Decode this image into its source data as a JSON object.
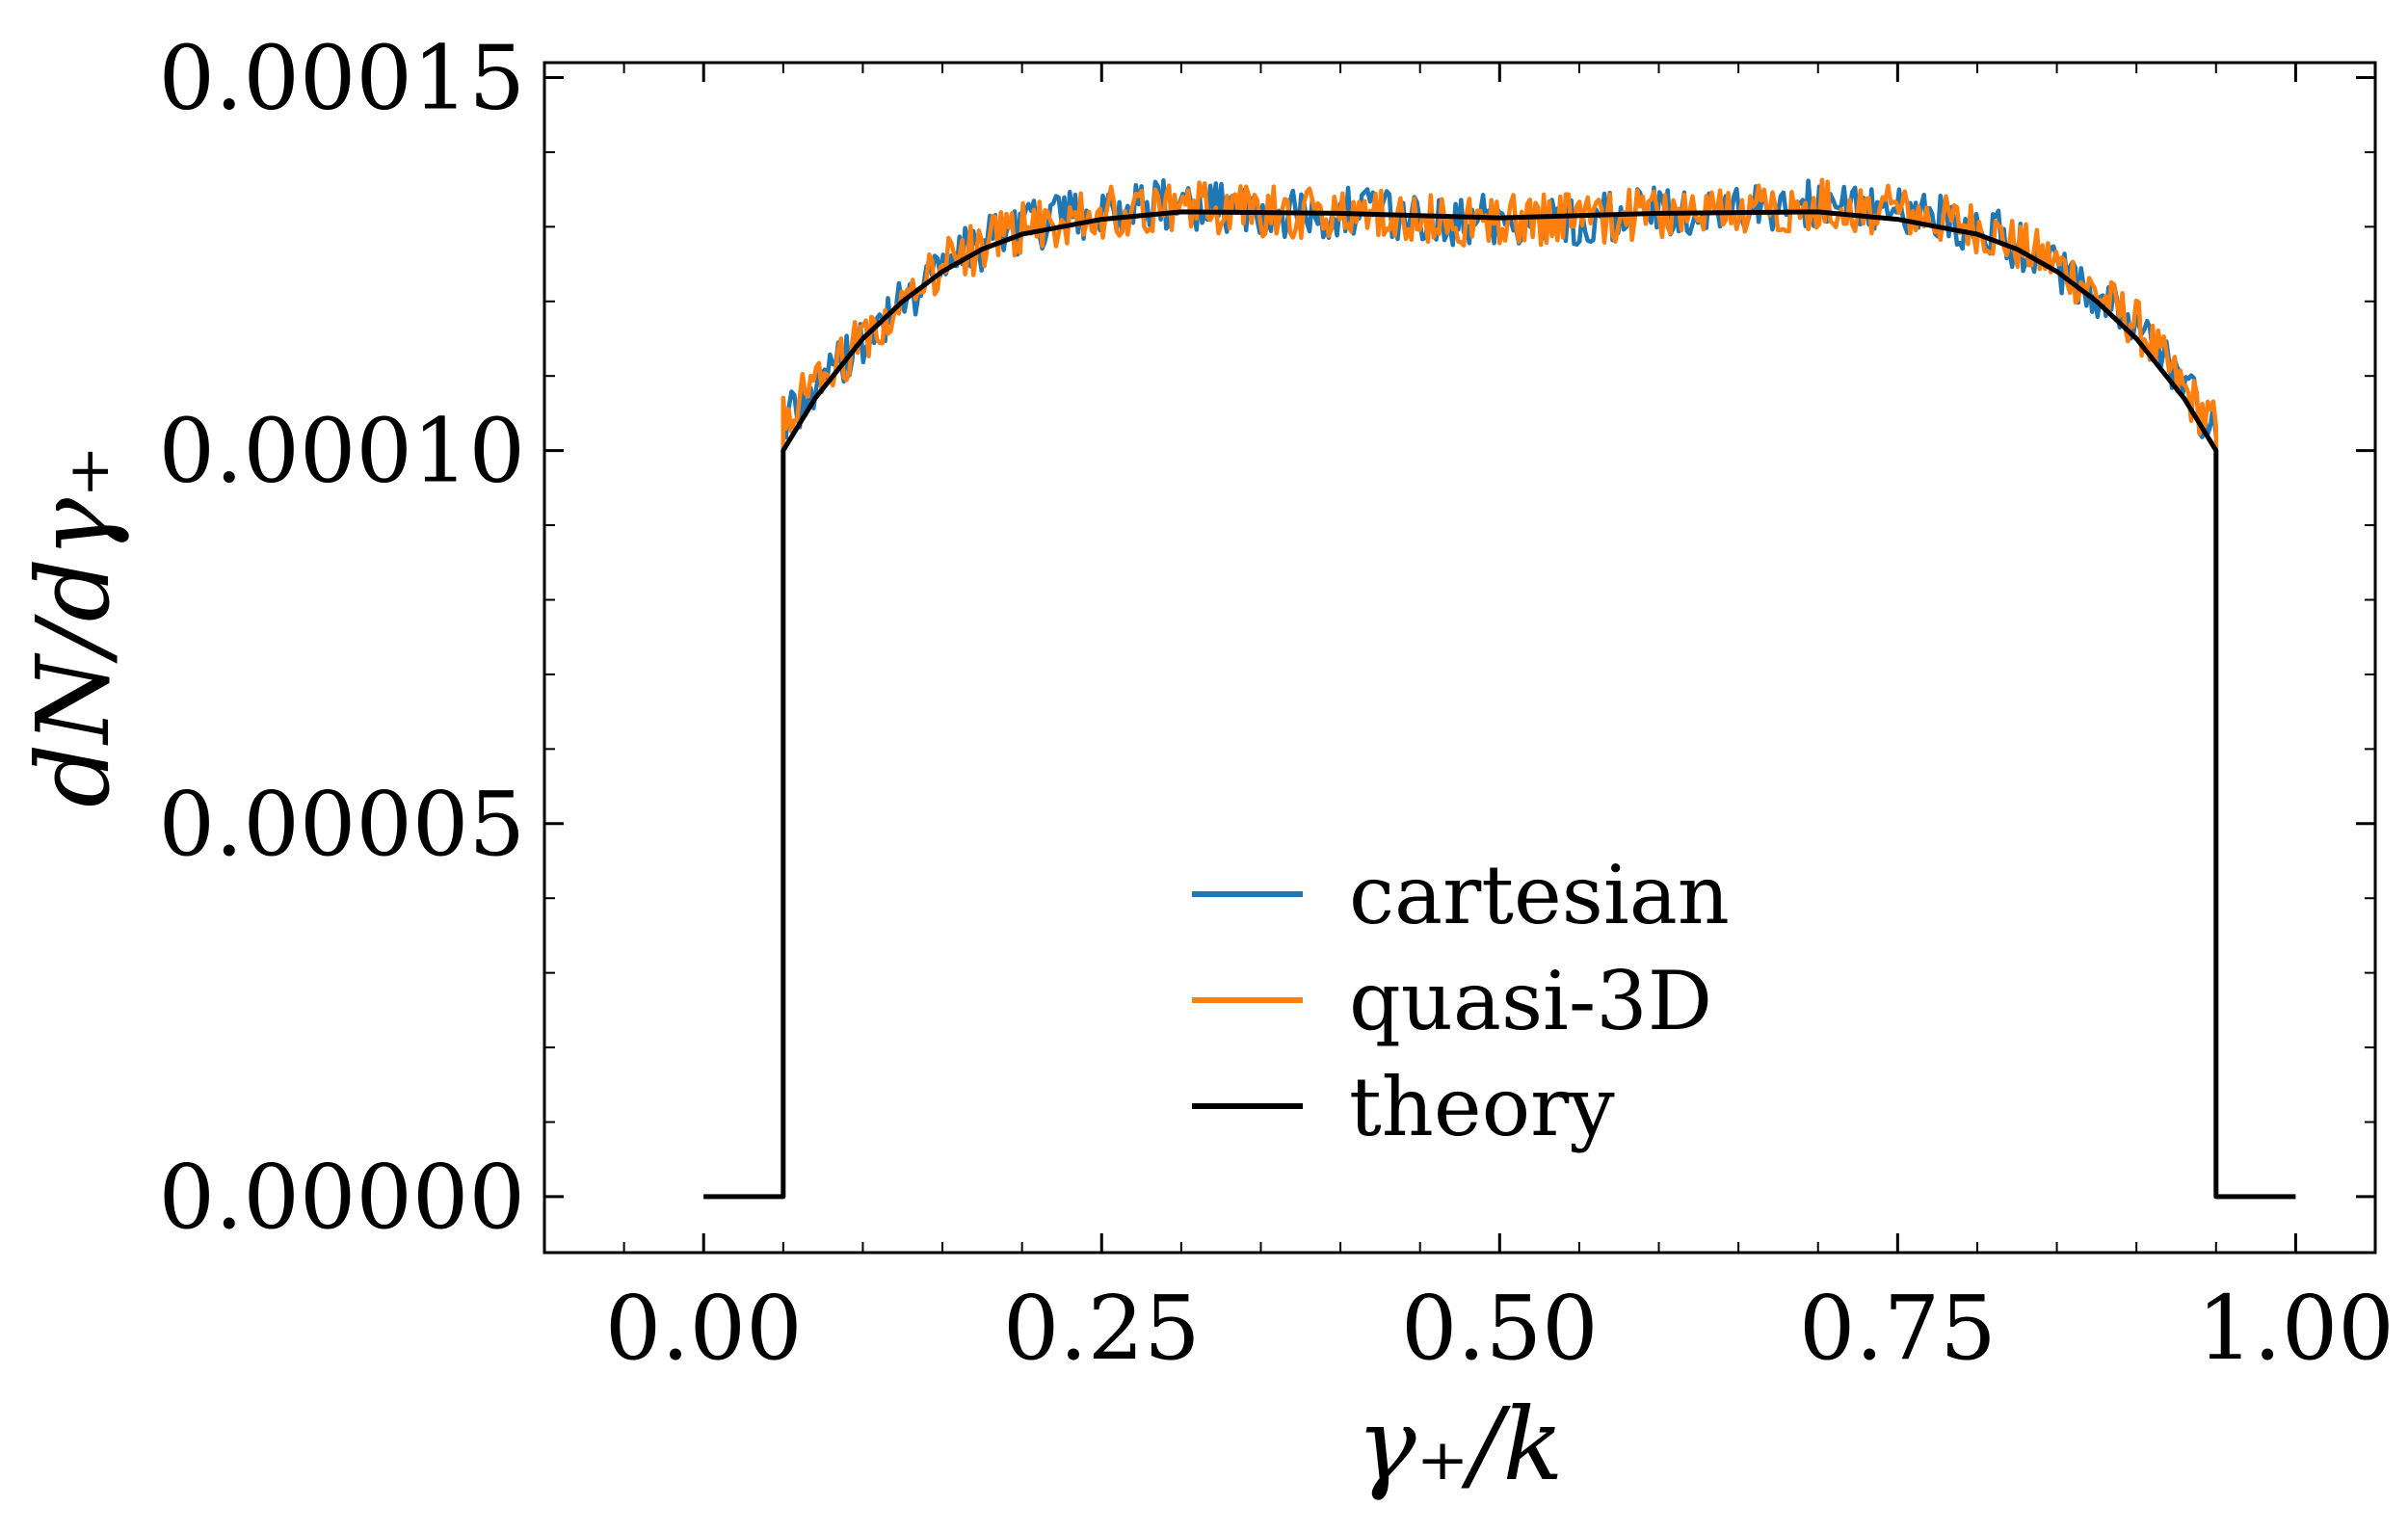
{
  "chart_data": {
    "type": "line",
    "title": "",
    "xlabel": "γ₊/k",
    "ylabel": "dN/dγ₊",
    "xlim": [
      -0.1,
      1.05
    ],
    "ylim": [
      -7.5e-06,
      0.000152
    ],
    "xticks": [
      0.0,
      0.25,
      0.5,
      0.75,
      1.0
    ],
    "xtick_labels": [
      "0.00",
      "0.25",
      "0.50",
      "0.75",
      "1.00"
    ],
    "yticks": [
      0.0,
      5e-05,
      0.0001,
      0.00015
    ],
    "ytick_labels": [
      "0.00000",
      "0.00005",
      "0.00010",
      "0.00015"
    ],
    "grid": false,
    "legend_position": "lower-center",
    "noise_amplitude": 3.5e-06,
    "series": [
      {
        "name": "cartesian",
        "color": "#1f77b4",
        "x": [
          0.0,
          0.05,
          0.05,
          0.07,
          0.1,
          0.15,
          0.2,
          0.25,
          0.3,
          0.35,
          0.4,
          0.45,
          0.5,
          0.55,
          0.6,
          0.65,
          0.7,
          0.75,
          0.8,
          0.85,
          0.9,
          0.93,
          0.95,
          0.95,
          1.0
        ],
        "y": [
          0.0,
          0.0,
          0.000105,
          0.000108,
          0.000115,
          0.000125,
          0.00013,
          0.000132,
          0.000133,
          0.000132,
          0.000132,
          0.000131,
          0.000131,
          0.000131,
          0.000132,
          0.000132,
          0.000133,
          0.000132,
          0.00013,
          0.000125,
          0.000117,
          0.000108,
          0.000103,
          0.0,
          0.0
        ]
      },
      {
        "name": "quasi-3D",
        "color": "#ff7f0e",
        "x": [
          0.0,
          0.05,
          0.05,
          0.07,
          0.1,
          0.15,
          0.2,
          0.25,
          0.3,
          0.35,
          0.4,
          0.45,
          0.5,
          0.55,
          0.6,
          0.65,
          0.7,
          0.75,
          0.8,
          0.85,
          0.9,
          0.93,
          0.95,
          0.95,
          1.0
        ],
        "y": [
          0.0,
          0.0,
          0.000105,
          0.000108,
          0.000115,
          0.000125,
          0.00013,
          0.000132,
          0.000133,
          0.000132,
          0.000132,
          0.000131,
          0.000131,
          0.000131,
          0.000132,
          0.000132,
          0.000133,
          0.000132,
          0.00013,
          0.000125,
          0.000117,
          0.000108,
          0.000103,
          0.0,
          0.0
        ]
      },
      {
        "name": "theory",
        "color": "#000000",
        "x": [
          0.0,
          0.05,
          0.05,
          0.07,
          0.1,
          0.125,
          0.15,
          0.175,
          0.2,
          0.25,
          0.3,
          0.4,
          0.5,
          0.6,
          0.7,
          0.75,
          0.8,
          0.825,
          0.85,
          0.875,
          0.9,
          0.93,
          0.95,
          0.95,
          1.0
        ],
        "y": [
          0.0,
          0.0,
          0.0001,
          0.000107,
          0.000115,
          0.00012,
          0.000124,
          0.000127,
          0.000129,
          0.000131,
          0.000132,
          0.0001318,
          0.0001312,
          0.0001318,
          0.000132,
          0.000131,
          0.000129,
          0.000127,
          0.000124,
          0.00012,
          0.000115,
          0.000107,
          0.0001,
          0.0,
          0.0
        ]
      }
    ]
  }
}
